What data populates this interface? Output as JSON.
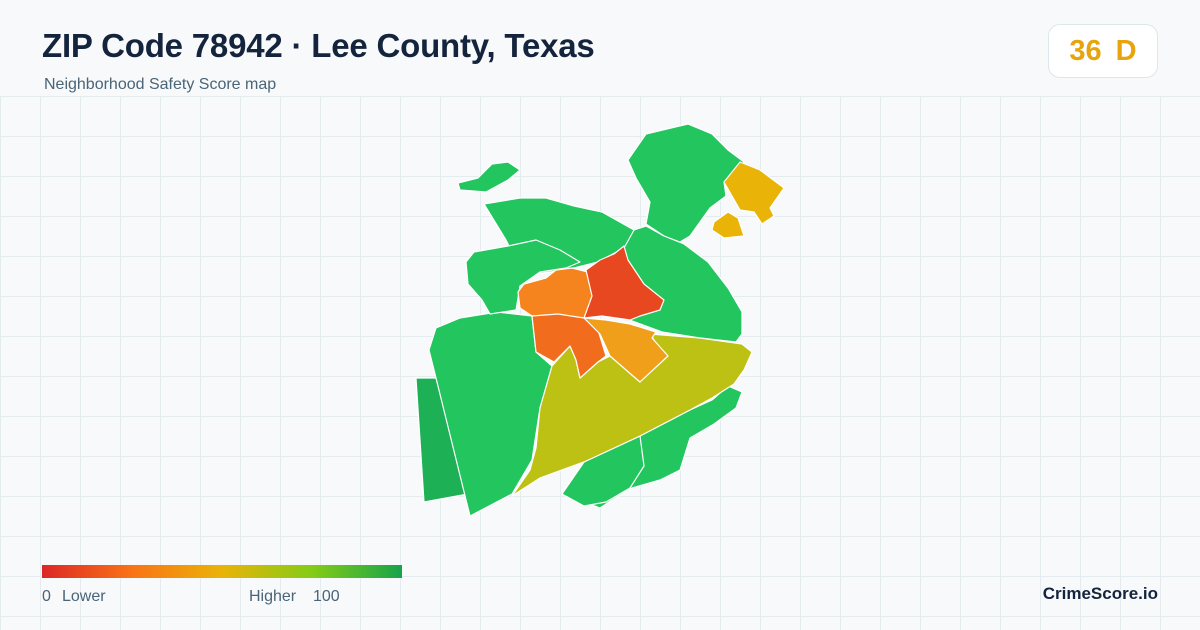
{
  "header": {
    "title": "ZIP Code 78942 · Lee County, Texas",
    "subtitle": "Neighborhood Safety Score map"
  },
  "score": {
    "value": "36",
    "grade": "D",
    "color": "#e8a40c"
  },
  "legend": {
    "min_value": "0",
    "min_label": "Lower",
    "max_label": "Higher",
    "max_value": "100",
    "colors": [
      "#dc2626",
      "#f97316",
      "#eab308",
      "#84cc16",
      "#16a34a"
    ]
  },
  "brand": "CrimeScore.io",
  "map": {
    "regions": [
      {
        "id": "west-strip",
        "color": "#1db055"
      },
      {
        "id": "southwest",
        "color": "#22c55e"
      },
      {
        "id": "north-arm",
        "color": "#22c55e"
      },
      {
        "id": "north-central",
        "color": "#22c55e"
      },
      {
        "id": "northwest-lobe",
        "color": "#22c55e"
      },
      {
        "id": "north-east",
        "color": "#22c55e"
      },
      {
        "id": "east-band",
        "color": "#22c55e"
      },
      {
        "id": "far-northeast",
        "color": "#eab308"
      },
      {
        "id": "northeast-small",
        "color": "#eab308"
      },
      {
        "id": "southeast",
        "color": "#22c55e"
      },
      {
        "id": "south-small",
        "color": "#22c55e"
      },
      {
        "id": "south-center",
        "color": "#bdc114"
      },
      {
        "id": "center-west",
        "color": "#f5841f"
      },
      {
        "id": "center-north",
        "color": "#e8481f"
      },
      {
        "id": "center-southwest",
        "color": "#f26c1e"
      },
      {
        "id": "center-east",
        "color": "#ef9f1a"
      }
    ]
  }
}
